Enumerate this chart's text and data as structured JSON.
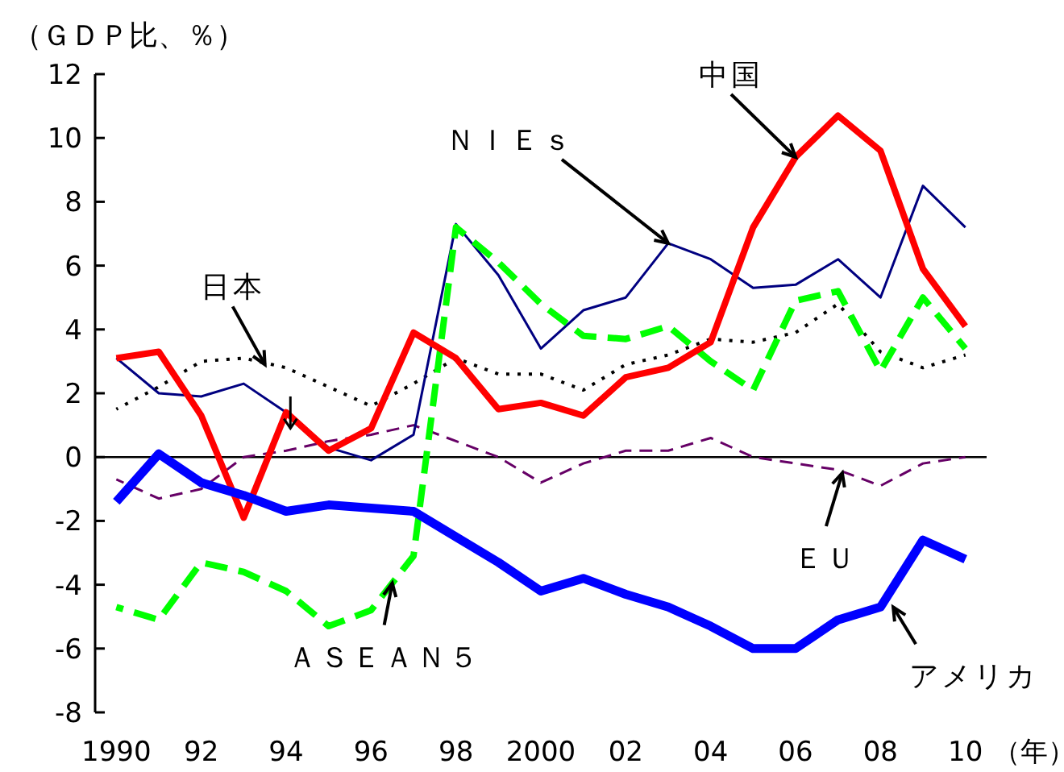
{
  "chart_data": {
    "type": "line",
    "ylabel": "（ＧＤＰ比、％）",
    "xlabel": "（年）",
    "x": [
      1990,
      1991,
      1992,
      1993,
      1994,
      1995,
      1996,
      1997,
      1998,
      1999,
      2000,
      2001,
      2002,
      2003,
      2004,
      2005,
      2006,
      2007,
      2008,
      2009,
      2010
    ],
    "xlim": [
      1989.5,
      2010.5
    ],
    "xticks": [
      {
        "value": 1990,
        "label": "1990"
      },
      {
        "value": 1992,
        "label": "92"
      },
      {
        "value": 1994,
        "label": "94"
      },
      {
        "value": 1996,
        "label": "96"
      },
      {
        "value": 1998,
        "label": "98"
      },
      {
        "value": 2000,
        "label": "2000"
      },
      {
        "value": 2002,
        "label": "02"
      },
      {
        "value": 2004,
        "label": "04"
      },
      {
        "value": 2006,
        "label": "06"
      },
      {
        "value": 2008,
        "label": "08"
      },
      {
        "value": 2010,
        "label": "10"
      }
    ],
    "ylim": [
      -8,
      12
    ],
    "yticks": [
      -8,
      -6,
      -4,
      -2,
      0,
      2,
      4,
      6,
      8,
      10,
      12
    ],
    "grid": false,
    "marker": "none",
    "ref_lines": [
      {
        "axis": "y",
        "value": 0,
        "color": "#000000",
        "line_style": "solid"
      }
    ],
    "series": [
      {
        "color": "#000000",
        "line_style": "dotted",
        "values": [
          1.5,
          2.2,
          3.0,
          3.1,
          2.8,
          2.2,
          1.6,
          2.3,
          3.1,
          2.6,
          2.6,
          2.1,
          2.9,
          3.2,
          3.7,
          3.6,
          3.9,
          4.8,
          3.3,
          2.8,
          3.2
        ]
      },
      {
        "color": "#660066",
        "line_style": "dashed",
        "values": [
          -0.7,
          -1.3,
          -1.0,
          0.0,
          0.2,
          0.5,
          0.7,
          1.0,
          0.5,
          0.0,
          -0.8,
          -0.2,
          0.2,
          0.2,
          0.6,
          0.0,
          -0.2,
          -0.4,
          -0.9,
          -0.2,
          0.0
        ]
      },
      {
        "color": "#000080",
        "line_style": "solid",
        "values": [
          3.1,
          2.0,
          1.9,
          2.3,
          1.4,
          0.3,
          -0.1,
          0.7,
          7.3,
          5.7,
          3.4,
          4.6,
          5.0,
          6.7,
          6.2,
          5.3,
          5.4,
          6.2,
          5.0,
          8.5,
          7.2
        ]
      },
      {
        "color": "#00ff00",
        "line_style": "dashed",
        "values": [
          -4.7,
          -5.1,
          -3.3,
          -3.6,
          -4.2,
          -5.3,
          -4.8,
          -3.1,
          7.2,
          6.1,
          4.8,
          3.8,
          3.7,
          4.1,
          3.0,
          2.1,
          4.9,
          5.2,
          2.7,
          5.0,
          3.4
        ]
      },
      {
        "color": "#ff0000",
        "line_style": "solid",
        "values": [
          3.1,
          3.3,
          1.3,
          -1.9,
          1.4,
          0.2,
          0.9,
          3.9,
          3.1,
          1.5,
          1.7,
          1.3,
          2.5,
          2.8,
          3.6,
          7.2,
          9.4,
          10.7,
          9.6,
          5.9,
          4.1
        ]
      },
      {
        "color": "#0000ff",
        "line_style": "solid",
        "values": [
          -1.4,
          0.1,
          -0.8,
          -1.2,
          -1.7,
          -1.5,
          -1.6,
          -1.7,
          -2.5,
          -3.3,
          -4.2,
          -3.8,
          -4.3,
          -4.7,
          -5.3,
          -6.0,
          -6.0,
          -5.1,
          -4.7,
          -2.6,
          -3.2
        ]
      }
    ],
    "annotations": [
      {
        "text": "中国",
        "x": 2006,
        "y": 9.4
      },
      {
        "text": "ＮＩＥｓ",
        "x": 2003,
        "y": 6.7
      },
      {
        "text": "日本",
        "x": 1993.5,
        "y": 2.9
      },
      {
        "text": "ＥＵ",
        "x": 2007.1,
        "y": -0.5
      },
      {
        "text": "ＡＳＥＡＮ５",
        "x": 1996.5,
        "y": -3.95
      },
      {
        "text": "アメリカ",
        "x": 2008.3,
        "y": -4.7
      }
    ]
  }
}
